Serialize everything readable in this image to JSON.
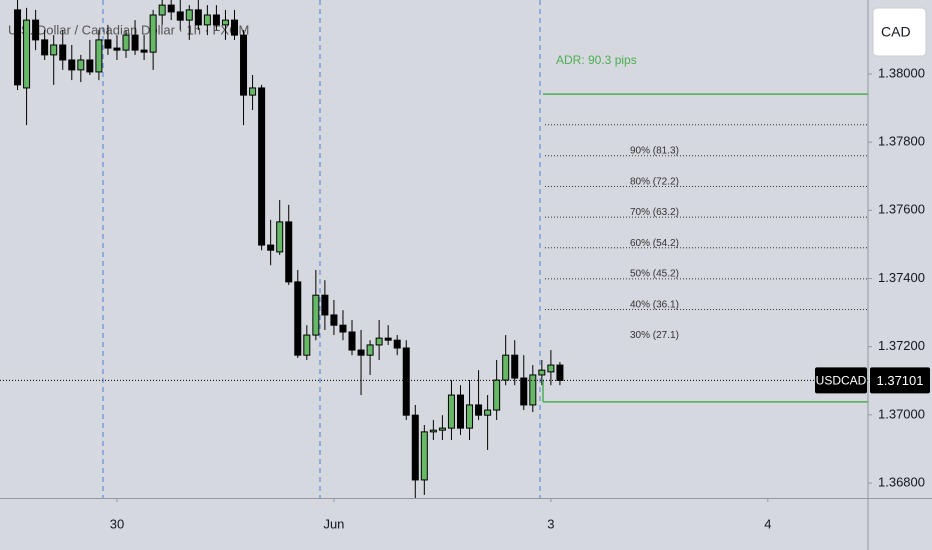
{
  "chart_data": {
    "type": "candlestick",
    "title": "U.S. Dollar / Canadian Dollar · 1h · FXCM",
    "currency": "CAD",
    "symbol": "USDCAD",
    "last_price": {
      "value": 1.37101,
      "label": "1.37101"
    },
    "up_color": "#66b866",
    "down_color": "#000000",
    "xlim": [
      -0.94,
      95.08
    ],
    "xticks": [
      {
        "value": 12,
        "label": "30"
      },
      {
        "value": 36,
        "label": "Jun"
      },
      {
        "value": 60,
        "label": "3"
      },
      {
        "value": 84,
        "label": "4"
      }
    ],
    "ylim": [
      1.36756,
      1.38217
    ],
    "yticks": [
      {
        "value": 1.38,
        "label": "1.38000"
      },
      {
        "value": 1.378,
        "label": "1.37800"
      },
      {
        "value": 1.376,
        "label": "1.37600"
      },
      {
        "value": 1.374,
        "label": "1.37400"
      },
      {
        "value": 1.372,
        "label": "1.37200"
      },
      {
        "value": 1.37,
        "label": "1.37000"
      },
      {
        "value": 1.368,
        "label": "1.36800"
      }
    ],
    "x": [
      1,
      2,
      3,
      4,
      5,
      6,
      7,
      8,
      9,
      10,
      11,
      12,
      13,
      14,
      15,
      16,
      17,
      18,
      19,
      20,
      21,
      22,
      23,
      24,
      25,
      26,
      27,
      28,
      29,
      30,
      31,
      32,
      33,
      34,
      35,
      36,
      37,
      38,
      39,
      40,
      41,
      42,
      43,
      44,
      45,
      46,
      47,
      48,
      49,
      50,
      51,
      52,
      53,
      54,
      55,
      56,
      57,
      58,
      59,
      60,
      61
    ],
    "open": [
      1.38188,
      1.37959,
      1.38158,
      1.381,
      1.38056,
      1.38085,
      1.38041,
      1.38012,
      1.38041,
      1.38006,
      1.381,
      1.38076,
      1.3807,
      1.38114,
      1.3807,
      1.38064,
      1.38173,
      1.38202,
      1.38182,
      1.38158,
      1.38188,
      1.38144,
      1.38173,
      1.38144,
      1.38158,
      1.38114,
      1.37938,
      1.37959,
      1.37498,
      1.37478,
      1.37566,
      1.3739,
      1.37175,
      1.37234,
      1.37351,
      1.37293,
      1.37263,
      1.37243,
      1.3719,
      1.37175,
      1.37205,
      1.37225,
      1.37219,
      1.37196,
      1.36999,
      1.36809,
      1.3695,
      1.36955,
      1.36961,
      1.37058,
      1.36961,
      1.37029,
      1.36999,
      1.37014,
      1.37102,
      1.37175,
      1.37108,
      1.37029,
      1.37117,
      1.37126,
      1.37146
    ],
    "high": [
      1.38217,
      1.38194,
      1.38188,
      1.38129,
      1.38114,
      1.38129,
      1.38085,
      1.38056,
      1.381,
      1.38129,
      1.38144,
      1.38114,
      1.38129,
      1.38158,
      1.38114,
      1.38188,
      1.38217,
      1.38232,
      1.38217,
      1.38202,
      1.38217,
      1.38202,
      1.38202,
      1.38188,
      1.38188,
      1.38129,
      1.37997,
      1.37968,
      1.37572,
      1.3763,
      1.37616,
      1.37425,
      1.37263,
      1.37425,
      1.37395,
      1.37337,
      1.37307,
      1.37278,
      1.37249,
      1.37219,
      1.37278,
      1.37263,
      1.37234,
      1.37219,
      1.37029,
      1.3697,
      1.36985,
      1.36999,
      1.37102,
      1.37087,
      1.37102,
      1.37131,
      1.37058,
      1.37161,
      1.37234,
      1.37219,
      1.37175,
      1.37146,
      1.37161,
      1.3719,
      1.37155
    ],
    "low": [
      1.37953,
      1.3785,
      1.3807,
      1.38041,
      1.37968,
      1.38012,
      1.37982,
      1.37976,
      1.37997,
      1.37982,
      1.38056,
      1.38041,
      1.38047,
      1.38056,
      1.38041,
      1.38012,
      1.38144,
      1.38158,
      1.38129,
      1.381,
      1.38129,
      1.38114,
      1.38129,
      1.381,
      1.381,
      1.3785,
      1.37894,
      1.37483,
      1.37439,
      1.37469,
      1.37381,
      1.37167,
      1.37161,
      1.37219,
      1.37249,
      1.37234,
      1.37219,
      1.37175,
      1.37058,
      1.37117,
      1.37161,
      1.37205,
      1.37175,
      1.36985,
      1.36756,
      1.36765,
      1.36926,
      1.36926,
      1.36926,
      1.36941,
      1.36926,
      1.36985,
      1.36897,
      1.36985,
      1.37087,
      1.37087,
      1.37014,
      1.37008,
      1.37087,
      1.37087,
      1.37087
    ],
    "close": [
      1.37968,
      1.38158,
      1.381,
      1.38056,
      1.38085,
      1.38041,
      1.38012,
      1.38041,
      1.38006,
      1.381,
      1.38076,
      1.3807,
      1.38114,
      1.3807,
      1.38064,
      1.38173,
      1.38202,
      1.38182,
      1.38158,
      1.38188,
      1.38144,
      1.38173,
      1.38144,
      1.38158,
      1.38114,
      1.37938,
      1.37959,
      1.37498,
      1.37483,
      1.37566,
      1.3739,
      1.37175,
      1.37234,
      1.37351,
      1.37293,
      1.37263,
      1.37243,
      1.3719,
      1.37175,
      1.37205,
      1.37225,
      1.37219,
      1.37196,
      1.36999,
      1.36809,
      1.3695,
      1.36955,
      1.36961,
      1.37058,
      1.36961,
      1.37029,
      1.36999,
      1.37014,
      1.37102,
      1.37175,
      1.37108,
      1.37029,
      1.37117,
      1.37131,
      1.37146,
      1.37101
    ],
    "adr": {
      "label": "ADR: 90.3 pips",
      "color": "#4caf50",
      "high": 1.37941,
      "low": 1.37038,
      "levels": [
        {
          "value": 1.37851,
          "label": "90% (81.3)"
        },
        {
          "value": 1.3776,
          "label": "80% (72.2)"
        },
        {
          "value": 1.3767,
          "label": "70% (63.2)"
        },
        {
          "value": 1.3758,
          "label": "60% (54.2)"
        },
        {
          "value": 1.3749,
          "label": "50% (45.2)"
        },
        {
          "value": 1.37399,
          "label": "40% (36.1)"
        },
        {
          "value": 1.37309,
          "label": "30% (27.1)"
        }
      ]
    }
  }
}
